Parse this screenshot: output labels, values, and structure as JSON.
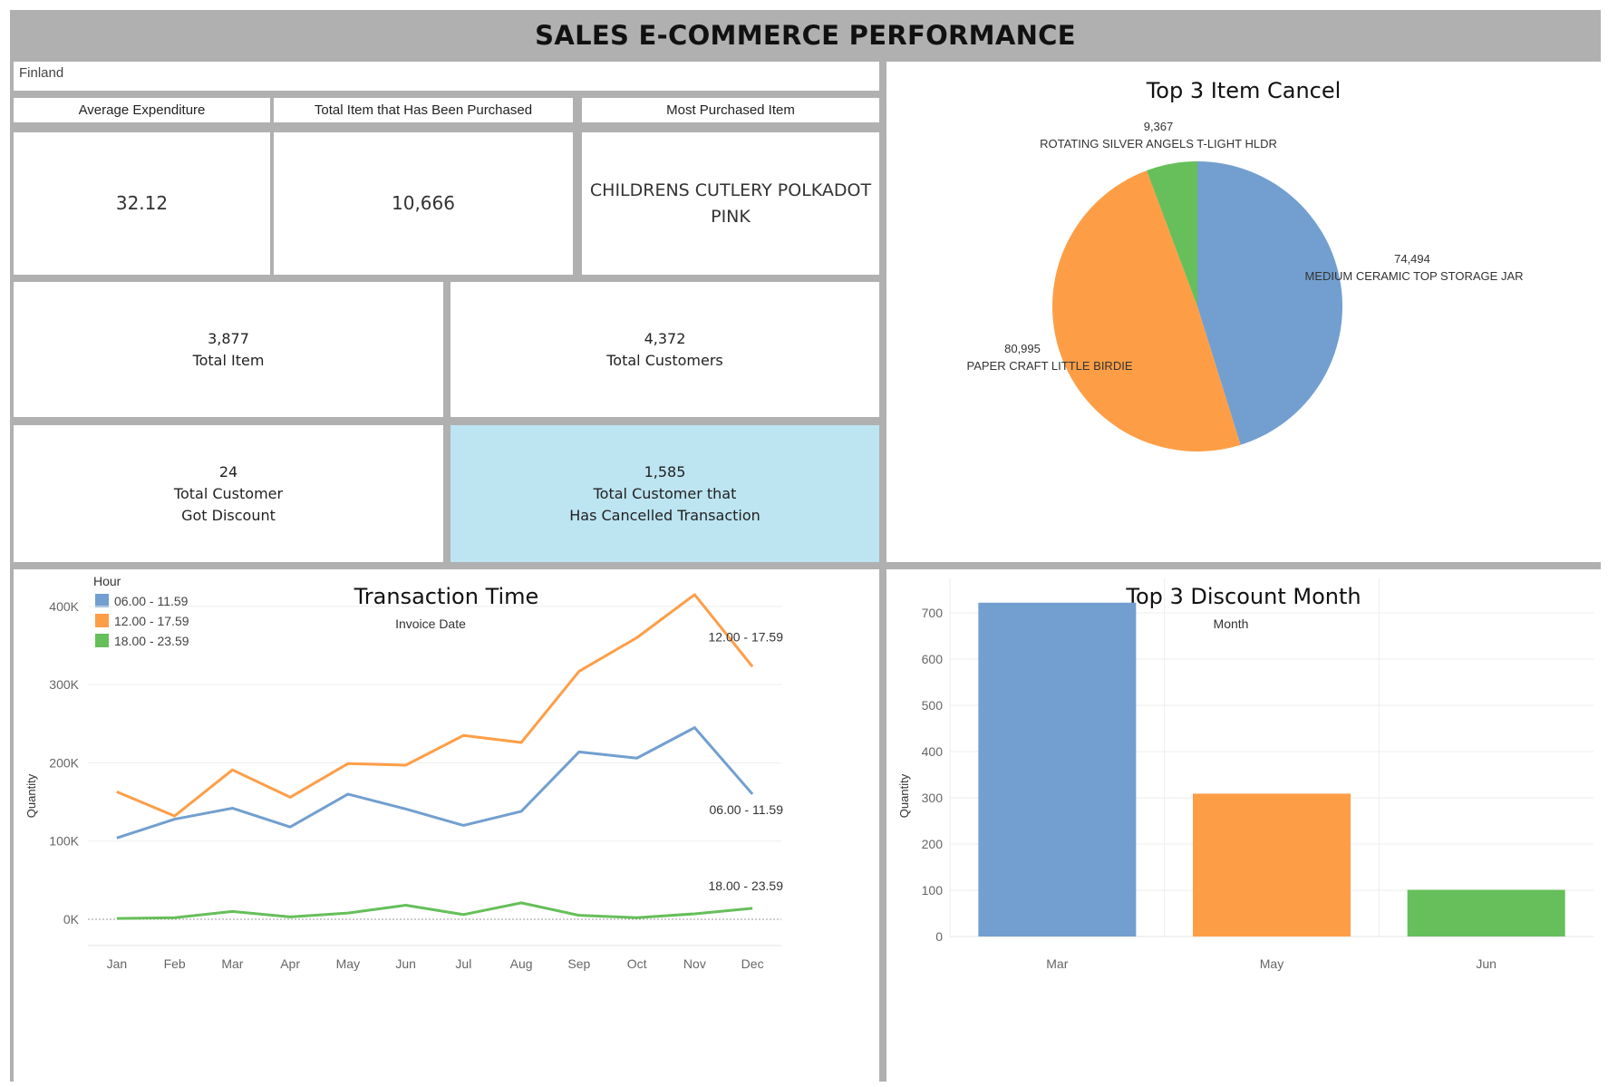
{
  "title": "SALES E-COMMERCE PERFORMANCE",
  "filter": "Finland",
  "kpis": [
    {
      "label": "Average Expenditure",
      "value": "32.12"
    },
    {
      "label": "Total Item that Has Been Purchased",
      "value": "10,666"
    },
    {
      "label": "Most Purchased Item",
      "value": "CHILDRENS CUTLERY POLKADOT PINK"
    }
  ],
  "stats": [
    {
      "value": "3,877",
      "label": "Total Item"
    },
    {
      "value": "4,372",
      "label": "Total Customers"
    },
    {
      "value": "24",
      "label": "Total Customer\nGot Discount"
    },
    {
      "value": "1,585",
      "label": "Total Customer that\nHas Cancelled Transaction"
    }
  ],
  "colors": {
    "blue": "#729fcf",
    "orange": "#fd9e47",
    "green": "#66bf5a",
    "highlight": "#bce4f1"
  },
  "chart_data": [
    {
      "type": "pie",
      "title": "Top 3 Item Cancel",
      "slices": [
        {
          "label": "MEDIUM CERAMIC TOP STORAGE JAR",
          "value": 74494,
          "value_label": "74,494",
          "color": "#729fcf"
        },
        {
          "label": "PAPER CRAFT  LITTLE BIRDIE",
          "value": 80995,
          "value_label": "80,995",
          "color": "#fd9e47"
        },
        {
          "label": "ROTATING SILVER ANGELS T-LIGHT HLDR",
          "value": 9367,
          "value_label": "9,367",
          "color": "#66bf5a"
        }
      ]
    },
    {
      "type": "line",
      "title": "Transaction Time",
      "subtitle": "Invoice Date",
      "xlabel": "",
      "ylabel": "Quantity",
      "legend_title": "Hour",
      "legend_position": "top-left",
      "categories": [
        "Jan",
        "Feb",
        "Mar",
        "Apr",
        "May",
        "Jun",
        "Jul",
        "Aug",
        "Sep",
        "Oct",
        "Nov",
        "Dec"
      ],
      "ylim": [
        0,
        420000
      ],
      "yticks": [
        0,
        100000,
        200000,
        300000,
        400000
      ],
      "ytick_labels": [
        "0K",
        "100K",
        "200K",
        "300K",
        "400K"
      ],
      "series": [
        {
          "name": "06.00 - 11.59",
          "color": "#729fcf",
          "values": [
            104000,
            128000,
            142000,
            118000,
            160000,
            141000,
            120000,
            138000,
            214000,
            206000,
            245000,
            160000
          ]
        },
        {
          "name": "12.00 - 17.59",
          "color": "#fd9e47",
          "values": [
            163000,
            132000,
            191000,
            156000,
            199000,
            197000,
            235000,
            226000,
            317000,
            360000,
            415000,
            323000
          ]
        },
        {
          "name": "18.00 - 23.59",
          "color": "#66bf5a",
          "values": [
            1000,
            2000,
            10000,
            3000,
            8000,
            18000,
            6000,
            21000,
            5000,
            2000,
            7000,
            14000
          ]
        }
      ]
    },
    {
      "type": "bar",
      "title": "Top 3 Discount Month",
      "subtitle": "Month",
      "xlabel": "",
      "ylabel": "Quantity",
      "categories": [
        "Mar",
        "May",
        "Jun"
      ],
      "values": [
        722,
        309,
        101
      ],
      "colors": [
        "#729fcf",
        "#fd9e47",
        "#66bf5a"
      ],
      "ylim": [
        0,
        760
      ],
      "yticks": [
        0,
        100,
        200,
        300,
        400,
        500,
        600,
        700
      ]
    }
  ]
}
